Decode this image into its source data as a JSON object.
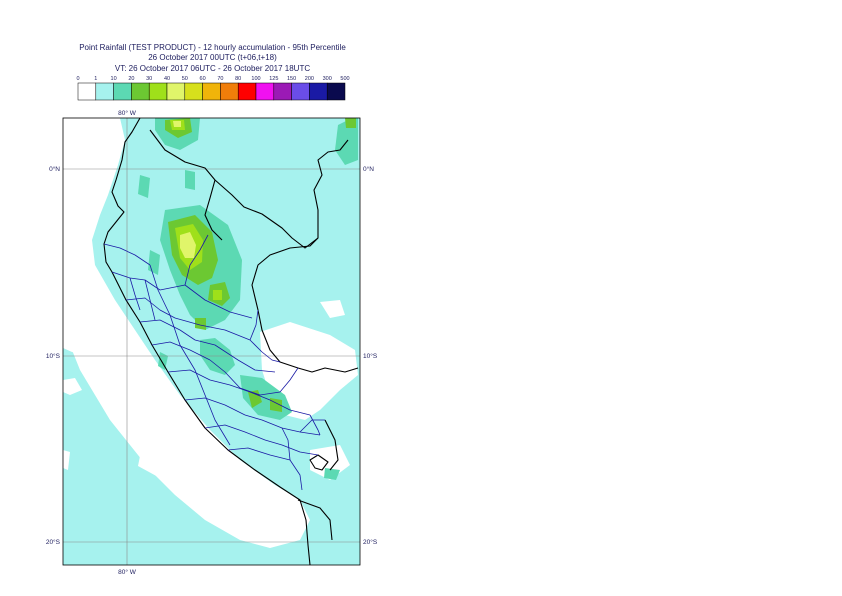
{
  "title": {
    "line1": "Point Rainfall (TEST PRODUCT) - 12 hourly accumulation - 95th Percentile",
    "line2": "26 October 2017 00UTC (t+06,t+18)",
    "line3": "VT: 26 October 2017 06UTC - 26 October 2017 18UTC"
  },
  "legend": {
    "thresholds": [
      "0",
      "1",
      "10",
      "20",
      "30",
      "40",
      "50",
      "60",
      "70",
      "80",
      "100",
      "125",
      "150",
      "200",
      "300",
      "500"
    ],
    "colors": [
      "#ffffff",
      "#a6f2ee",
      "#5cd9b3",
      "#6cc832",
      "#9fe01a",
      "#e0f56a",
      "#d7e01c",
      "#f0b40a",
      "#f07e0a",
      "#ff0000",
      "#f011f0",
      "#9b1ab5",
      "#6a4de8",
      "#1a1aa5",
      "#0a0a4e"
    ]
  },
  "map": {
    "lon_labels": [
      "80° W",
      "80° W"
    ],
    "lat_labels": {
      "left": [
        "0°N",
        "10°S",
        "20°S"
      ],
      "right": [
        "0°N",
        "10°S",
        "20°S"
      ]
    },
    "colors": {
      "background": "#a6f2ee",
      "frame": "#000000",
      "grid": "#8a8a8a",
      "coast": "#000000",
      "regions": "#1a1aa5"
    }
  }
}
